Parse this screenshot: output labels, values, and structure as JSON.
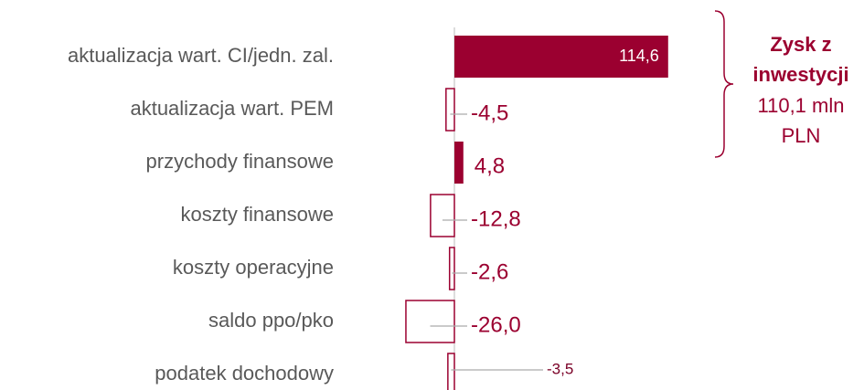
{
  "chart_data": {
    "type": "hbar",
    "categories": [
      "aktualizacja wart. CI/jedn. zal.",
      "aktualizacja wart. PEM",
      "przychody finansowe",
      "koszty finansowe",
      "koszty operacyjne",
      "saldo ppo/pko",
      "podatek dochodowy"
    ],
    "values": [
      114.6,
      -4.5,
      4.8,
      -12.8,
      -2.6,
      -26.0,
      -3.5
    ],
    "value_labels": [
      "114,6",
      "-4,5",
      "4,8",
      "-12,8",
      "-2,6",
      "-26,0",
      "-3,5"
    ],
    "color": "#9b0030",
    "annotation": {
      "title": [
        "Zysk z",
        "inwestycji"
      ],
      "text": [
        "110,1 mln",
        "PLN"
      ]
    }
  }
}
